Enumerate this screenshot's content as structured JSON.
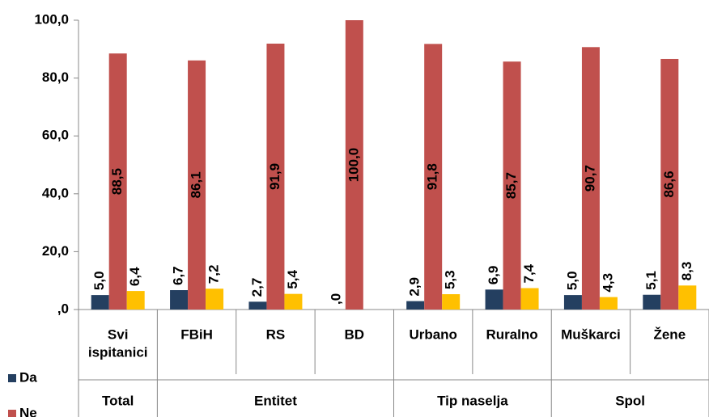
{
  "chart_data": {
    "type": "bar",
    "categories": [
      [
        "Svi",
        "ispitanici"
      ],
      "FBiH",
      "RS",
      "BD",
      "Urbano",
      "Ruralno",
      "Muškarci",
      "Žene"
    ],
    "groups": [
      {
        "label": "Total",
        "span": 1
      },
      {
        "label": "Entitet",
        "span": 3
      },
      {
        "label": "Tip naselja",
        "span": 2
      },
      {
        "label": "Spol",
        "span": 2
      }
    ],
    "series": [
      {
        "name": "Da",
        "color": "#243f60",
        "values": [
          5.0,
          6.7,
          2.7,
          0,
          2.9,
          6.9,
          5.0,
          5.1
        ],
        "value_labels": [
          "5,0",
          "6,7",
          "2,7",
          ",0",
          "2,9",
          "6,9",
          "5,0",
          "5,1"
        ]
      },
      {
        "name": "Ne",
        "color": "#c0504d",
        "values": [
          88.5,
          86.1,
          91.9,
          100.0,
          91.8,
          85.7,
          90.7,
          86.6
        ],
        "value_labels": [
          "88,5",
          "86,1",
          "91,9",
          "100,0",
          "91,8",
          "85,7",
          "90,7",
          "86,6"
        ]
      },
      {
        "color": "#ffc000",
        "values": [
          6.4,
          7.2,
          5.4,
          null,
          5.3,
          7.4,
          4.3,
          8.3
        ],
        "value_labels": [
          "6,4",
          "7,2",
          "5,4",
          null,
          "5,3",
          "7,4",
          "4,3",
          "8,3"
        ]
      }
    ],
    "ylim": [
      0,
      100
    ],
    "yticks": [
      {
        "value": 0,
        "label": ",0"
      },
      {
        "value": 20,
        "label": "20,0"
      },
      {
        "value": 40,
        "label": "40,0"
      },
      {
        "value": 60,
        "label": "60,0"
      },
      {
        "value": 80,
        "label": "80,0"
      },
      {
        "value": 100,
        "label": "100,0"
      }
    ]
  }
}
